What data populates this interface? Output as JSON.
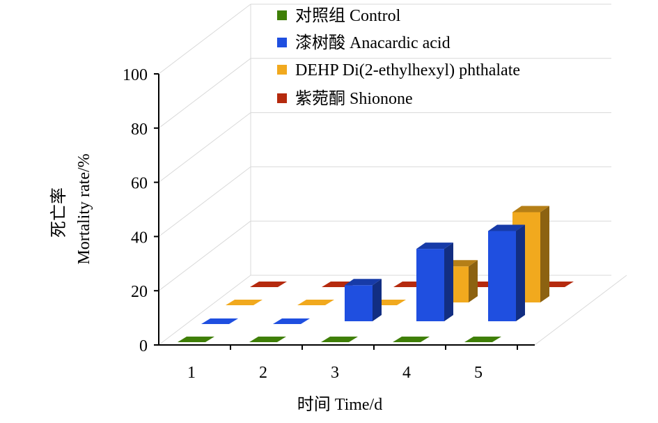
{
  "chart_data": {
    "type": "bar",
    "subtype": "3d-clustered-column",
    "categories": [
      "1",
      "2",
      "3",
      "4",
      "5"
    ],
    "series": [
      {
        "name": "对照组 Control",
        "color": "#3F7F07",
        "values": [
          0,
          0,
          0,
          0,
          0
        ]
      },
      {
        "name": "漆树酸 Anacardic acid",
        "color": "#1F4FE0",
        "values": [
          0,
          0,
          13.3,
          26.7,
          33.3
        ]
      },
      {
        "name": "DEHP Di(2-ethylhexyl) phthalate",
        "color": "#F1A91E",
        "values": [
          0,
          0,
          0,
          13.3,
          33.3
        ]
      },
      {
        "name": "紫菀酮 Shionone",
        "color": "#B52A0E",
        "values": [
          0,
          0,
          0,
          0,
          0
        ]
      }
    ],
    "xlabel": "时间 Time/d",
    "ylabel_cn": "死亡率",
    "ylabel_en": "Mortality rate/%",
    "yticks": [
      "0",
      "20",
      "40",
      "60",
      "80",
      "100"
    ],
    "ylim": [
      0,
      100
    ],
    "grid": true,
    "legend_position": "top-right"
  }
}
